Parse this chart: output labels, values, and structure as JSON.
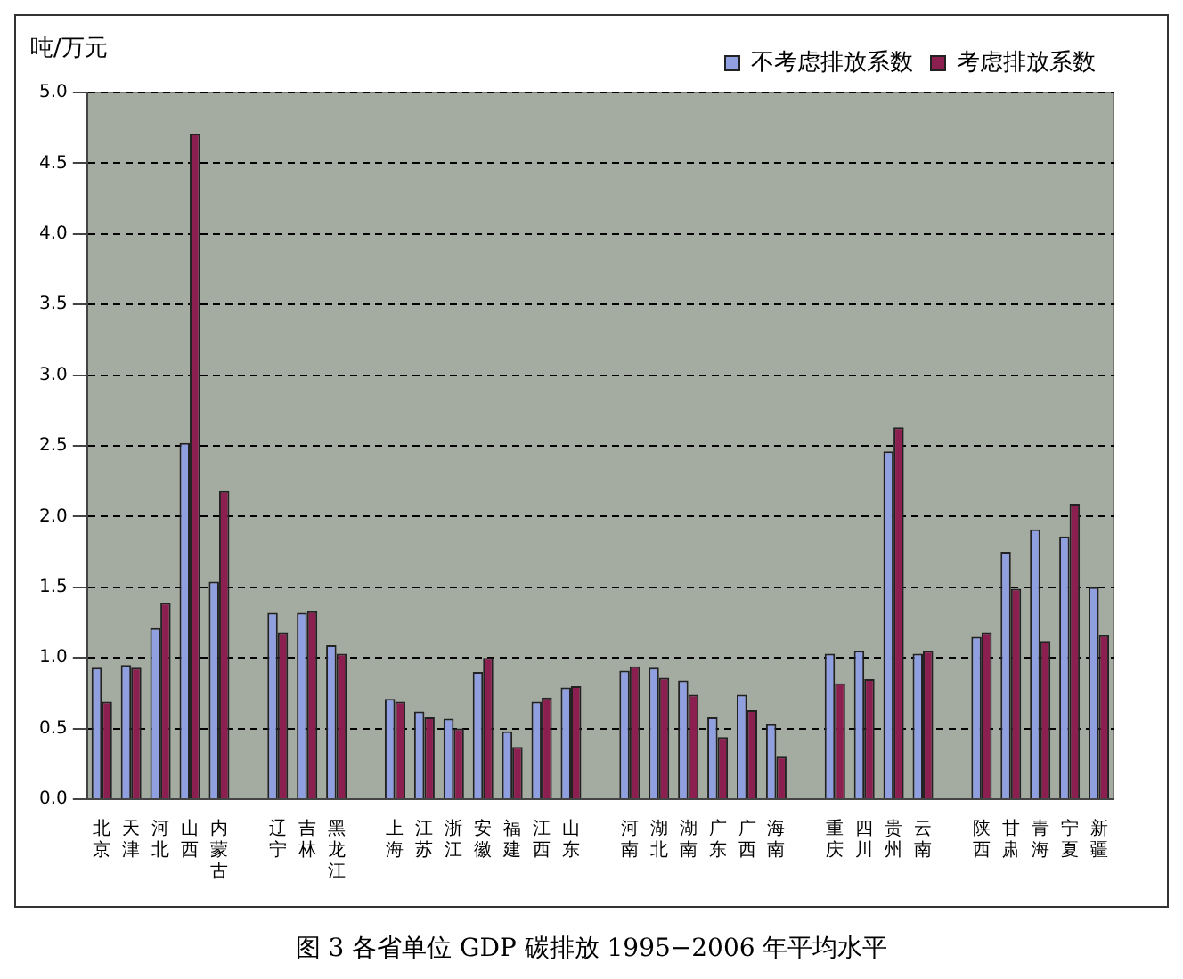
{
  "chart_data": {
    "type": "bar",
    "title": "图 3 各省单位 GDP 碳排放 1995−2006 年平均水平",
    "ylabel": "吨/万元",
    "categories": [
      "北京",
      "天津",
      "河北",
      "山西",
      "内蒙古",
      null,
      "辽宁",
      "吉林",
      "黑龙江",
      null,
      "上海",
      "江苏",
      "浙江",
      "安徽",
      "福建",
      "江西",
      "山东",
      null,
      "河南",
      "湖北",
      "湖南",
      "广东",
      "广西",
      "海南",
      null,
      "重庆",
      "四川",
      "贵州",
      "云南",
      null,
      "陕西",
      "甘肃",
      "青海",
      "宁夏",
      "新疆"
    ],
    "series": [
      {
        "name": "不考虑排放系数",
        "color": "#8f9fe0",
        "values": [
          0.93,
          0.95,
          1.21,
          2.52,
          1.54,
          null,
          1.32,
          1.32,
          1.09,
          null,
          0.71,
          0.62,
          0.57,
          0.9,
          0.48,
          0.69,
          0.79,
          null,
          0.91,
          0.93,
          0.84,
          0.58,
          0.74,
          0.53,
          null,
          1.03,
          1.05,
          2.46,
          1.03,
          null,
          1.15,
          1.75,
          1.91,
          1.86,
          1.5
        ]
      },
      {
        "name": "考虑排放系数",
        "color": "#8b1f4f",
        "values": [
          0.69,
          0.93,
          1.39,
          4.71,
          2.18,
          null,
          1.18,
          1.33,
          1.03,
          null,
          0.69,
          0.58,
          0.5,
          1.0,
          0.37,
          0.72,
          0.8,
          null,
          0.94,
          0.86,
          0.74,
          0.44,
          0.63,
          0.3,
          null,
          0.82,
          0.85,
          2.63,
          1.05,
          null,
          1.18,
          1.49,
          1.12,
          2.09,
          1.16
        ]
      }
    ],
    "ylim": [
      0,
      5
    ],
    "yticks": [
      {
        "value": 0,
        "label": "0.0"
      },
      {
        "value": 0.5,
        "label": "0.5"
      },
      {
        "value": 1,
        "label": "1.0"
      },
      {
        "value": 1.5,
        "label": "1.5"
      },
      {
        "value": 2,
        "label": "2.0"
      },
      {
        "value": 2.5,
        "label": "2.5"
      },
      {
        "value": 3,
        "label": "3.0"
      },
      {
        "value": 3.5,
        "label": "3.5"
      },
      {
        "value": 4,
        "label": "4.0"
      },
      {
        "value": 4.5,
        "label": "4.5"
      },
      {
        "value": 5,
        "label": "5.0"
      }
    ],
    "grid": "y",
    "legend": "top right"
  }
}
